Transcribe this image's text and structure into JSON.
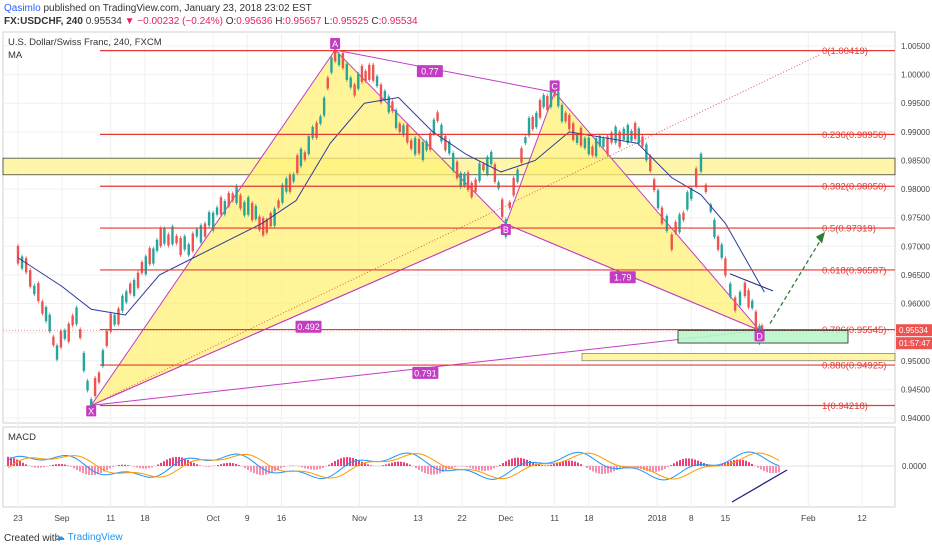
{
  "header": {
    "user": "Qasimlo",
    "published": "published on TradingView.com, January 23, 2018 23:02 EST",
    "symbol": "FX:USDCHF, 240",
    "last": "0.95534",
    "change": "▼ −0.00232 (−0.24%)",
    "o_label": "O:",
    "o": "0.95636",
    "h_label": "H:",
    "h": "0.95657",
    "l_label": "L:",
    "l": "0.95525",
    "c_label": "C:",
    "c": "0.95534"
  },
  "pane_title": "U.S. Dollar/Swiss Franc, 240, FXCM",
  "indicator_label": "MA",
  "macd_label": "MACD",
  "footer": {
    "created": "Created with",
    "brand": "TradingView"
  },
  "colors": {
    "up": "#26a69a",
    "down": "#ef5350",
    "ma": "#2b3a9f",
    "fib": "#e53935",
    "pattern": "#c33cc4",
    "yellow": "#fff59d",
    "green": "#b9f6ca"
  },
  "chart_data": {
    "type": "line",
    "title": "U.S. Dollar/Swiss Franc, 240, FXCM",
    "x_ticks": [
      "23",
      "Sep",
      "11",
      "18",
      "Oct",
      "9",
      "16",
      "Nov",
      "13",
      "22",
      "Dec",
      "11",
      "18",
      "2018",
      "8",
      "15",
      "Feb",
      "12"
    ],
    "y_ticks": [
      "1.00500",
      "1.00000",
      "0.99500",
      "0.99000",
      "0.98500",
      "0.98000",
      "0.97500",
      "0.97000",
      "0.96500",
      "0.96000",
      "0.95500",
      "0.95000",
      "0.94500",
      "0.94000"
    ],
    "ylim": [
      0.9375,
      1.0065
    ],
    "current_price": "0.95534",
    "countdown": "01:57:47",
    "fib_levels": [
      {
        "label": "0(1.00419)",
        "value": 1.00419
      },
      {
        "label": "0.236(0.98956)",
        "value": 0.98956
      },
      {
        "label": "0.382(0.98050)",
        "value": 0.9805
      },
      {
        "label": "0.5(0.97319)",
        "value": 0.97319
      },
      {
        "label": "0.618(0.96587)",
        "value": 0.96587
      },
      {
        "label": "0.786(0.95545)",
        "value": 0.95545
      },
      {
        "label": "0.886(0.94925)",
        "value": 0.94925
      },
      {
        "label": "1(0.94218)",
        "value": 0.94218
      }
    ],
    "pattern_points": [
      {
        "name": "X",
        "date": "Sep 7",
        "price": 0.9422
      },
      {
        "name": "A",
        "date": "Oct 27",
        "price": 1.0043
      },
      {
        "name": "B",
        "date": "Dec 1",
        "price": 0.9739
      },
      {
        "name": "C",
        "date": "Dec 11",
        "price": 0.9969
      },
      {
        "name": "D",
        "date": "Jan 22",
        "price": 0.9553
      }
    ],
    "ratios": [
      "0.77",
      "0.492",
      "1.79",
      "0.791"
    ],
    "resistance_zone": [
      0.9825,
      0.9854
    ],
    "target_zone": [
      0.95,
      0.9513
    ],
    "prz_zone": [
      0.9531,
      0.9553
    ],
    "macd_zero_label": "0.0000",
    "price_path": [
      [
        "Aug 23",
        0.969
      ],
      [
        "Aug 28",
        0.96
      ],
      [
        "Aug 31",
        0.952
      ],
      [
        "Sep 4",
        0.958
      ],
      [
        "Sep 7",
        0.9422
      ],
      [
        "Sep 11",
        0.956
      ],
      [
        "Sep 15",
        0.962
      ],
      [
        "Sep 19",
        0.968
      ],
      [
        "Sep 22",
        0.972
      ],
      [
        "Sep 27",
        0.97
      ],
      [
        "Oct 2",
        0.975
      ],
      [
        "Oct 6",
        0.979
      ],
      [
        "Oct 10",
        0.976
      ],
      [
        "Oct 13",
        0.973
      ],
      [
        "Oct 17",
        0.98
      ],
      [
        "Oct 20",
        0.985
      ],
      [
        "Oct 24",
        0.992
      ],
      [
        "Oct 27",
        1.0043
      ],
      [
        "Oct 31",
        0.998
      ],
      [
        "Nov 3",
        1.001
      ],
      [
        "Nov 7",
        0.995
      ],
      [
        "Nov 10",
        0.99
      ],
      [
        "Nov 14",
        0.986
      ],
      [
        "Nov 17",
        0.992
      ],
      [
        "Nov 21",
        0.983
      ],
      [
        "Nov 24",
        0.98
      ],
      [
        "Nov 28",
        0.986
      ],
      [
        "Dec 1",
        0.9739
      ],
      [
        "Dec 5",
        0.989
      ],
      [
        "Dec 8",
        0.994
      ],
      [
        "Dec 11",
        0.9969
      ],
      [
        "Dec 14",
        0.991
      ],
      [
        "Dec 18",
        0.987
      ],
      [
        "Dec 21",
        0.988
      ],
      [
        "Dec 26",
        0.99
      ],
      [
        "Dec 29",
        0.989
      ],
      [
        "Jan 2",
        0.976
      ],
      [
        "Jan 4",
        0.971
      ],
      [
        "Jan 8",
        0.979
      ],
      [
        "Jan 10",
        0.984
      ],
      [
        "Jan 12",
        0.976
      ],
      [
        "Jan 15",
        0.966
      ],
      [
        "Jan 17",
        0.96
      ],
      [
        "Jan 19",
        0.963
      ],
      [
        "Jan 22",
        0.9553
      ],
      [
        "Jan 23",
        0.9553
      ]
    ],
    "ma_path": [
      [
        "Aug 23",
        0.968
      ],
      [
        "Sep 1",
        0.963
      ],
      [
        "Sep 7",
        0.959
      ],
      [
        "Sep 14",
        0.958
      ],
      [
        "Sep 21",
        0.965
      ],
      [
        "Sep 28",
        0.968
      ],
      [
        "Oct 5",
        0.971
      ],
      [
        "Oct 12",
        0.974
      ],
      [
        "Oct 19",
        0.978
      ],
      [
        "Oct 26",
        0.988
      ],
      [
        "Nov 2",
        0.995
      ],
      [
        "Nov 9",
        0.996
      ],
      [
        "Nov 16",
        0.99
      ],
      [
        "Nov 23",
        0.986
      ],
      [
        "Nov 30",
        0.983
      ],
      [
        "Dec 7",
        0.985
      ],
      [
        "Dec 14",
        0.99
      ],
      [
        "Dec 21",
        0.989
      ],
      [
        "Dec 28",
        0.988
      ],
      [
        "Jan 4",
        0.982
      ],
      [
        "Jan 10",
        0.979
      ],
      [
        "Jan 15",
        0.974
      ],
      [
        "Jan 19",
        0.968
      ],
      [
        "Jan 23",
        0.962
      ]
    ]
  }
}
